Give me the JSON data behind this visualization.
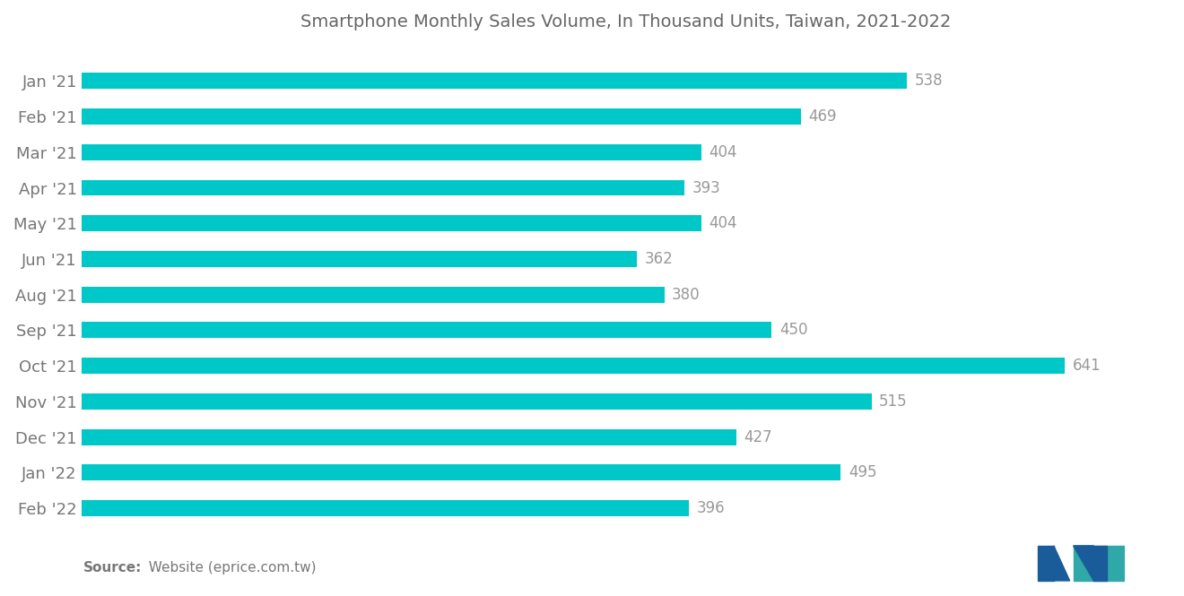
{
  "title": "Smartphone Monthly Sales Volume, In Thousand Units, Taiwan, 2021-2022",
  "categories": [
    "Jan '21",
    "Feb '21",
    "Mar '21",
    "Apr '21",
    "May '21",
    "Jun '21",
    "Aug '21",
    "Sep '21",
    "Oct '21",
    "Nov '21",
    "Dec '21",
    "Jan '22",
    "Feb '22"
  ],
  "values": [
    538,
    469,
    404,
    393,
    404,
    362,
    380,
    450,
    641,
    515,
    427,
    495,
    396
  ],
  "bar_color": "#00C8C8",
  "value_label_color": "#999999",
  "title_color": "#666666",
  "category_label_color": "#777777",
  "background_color": "#ffffff",
  "source_bold": "Source:",
  "source_normal": "  Website (eprice.com.tw)",
  "xlim": [
    0,
    710
  ],
  "title_fontsize": 14,
  "label_fontsize": 13,
  "value_fontsize": 12,
  "bar_height": 0.45,
  "logo_colors": [
    "#1a5c9a",
    "#2fa8a8"
  ]
}
